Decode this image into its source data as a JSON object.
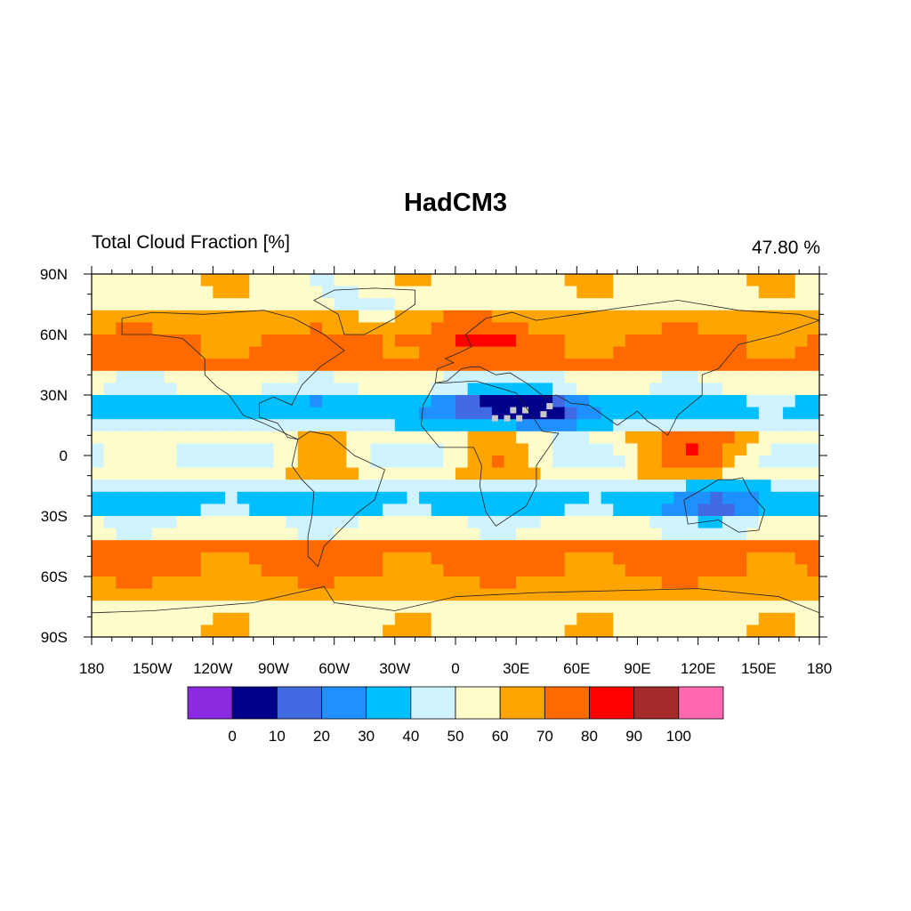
{
  "title": "HadCM3",
  "left_string": "Total Cloud Fraction [%]",
  "right_string": "47.80 %",
  "map": {
    "projection": "cylindrical-equidistant",
    "lon_range": [
      -180,
      180
    ],
    "lat_range": [
      -90,
      90
    ],
    "lat_labels": [
      "90N",
      "60N",
      "30N",
      "0",
      "30S",
      "60S",
      "90S"
    ],
    "lon_labels": [
      "180",
      "150W",
      "120W",
      "90W",
      "60W",
      "30W",
      "0",
      "30E",
      "60E",
      "90E",
      "120E",
      "150E",
      "180"
    ],
    "missing_value_color": "#c8c8c8"
  },
  "colorbar": {
    "levels": [
      "0",
      "10",
      "20",
      "30",
      "40",
      "50",
      "60",
      "70",
      "80",
      "90",
      "100"
    ],
    "colors": [
      "#8a2be2",
      "#00008b",
      "#4169e1",
      "#1e90ff",
      "#00bfff",
      "#d0f4ff",
      "#fffccc",
      "#ffa500",
      "#ff6a00",
      "#ff0000",
      "#a52a2a",
      "#ff69b4"
    ]
  }
}
